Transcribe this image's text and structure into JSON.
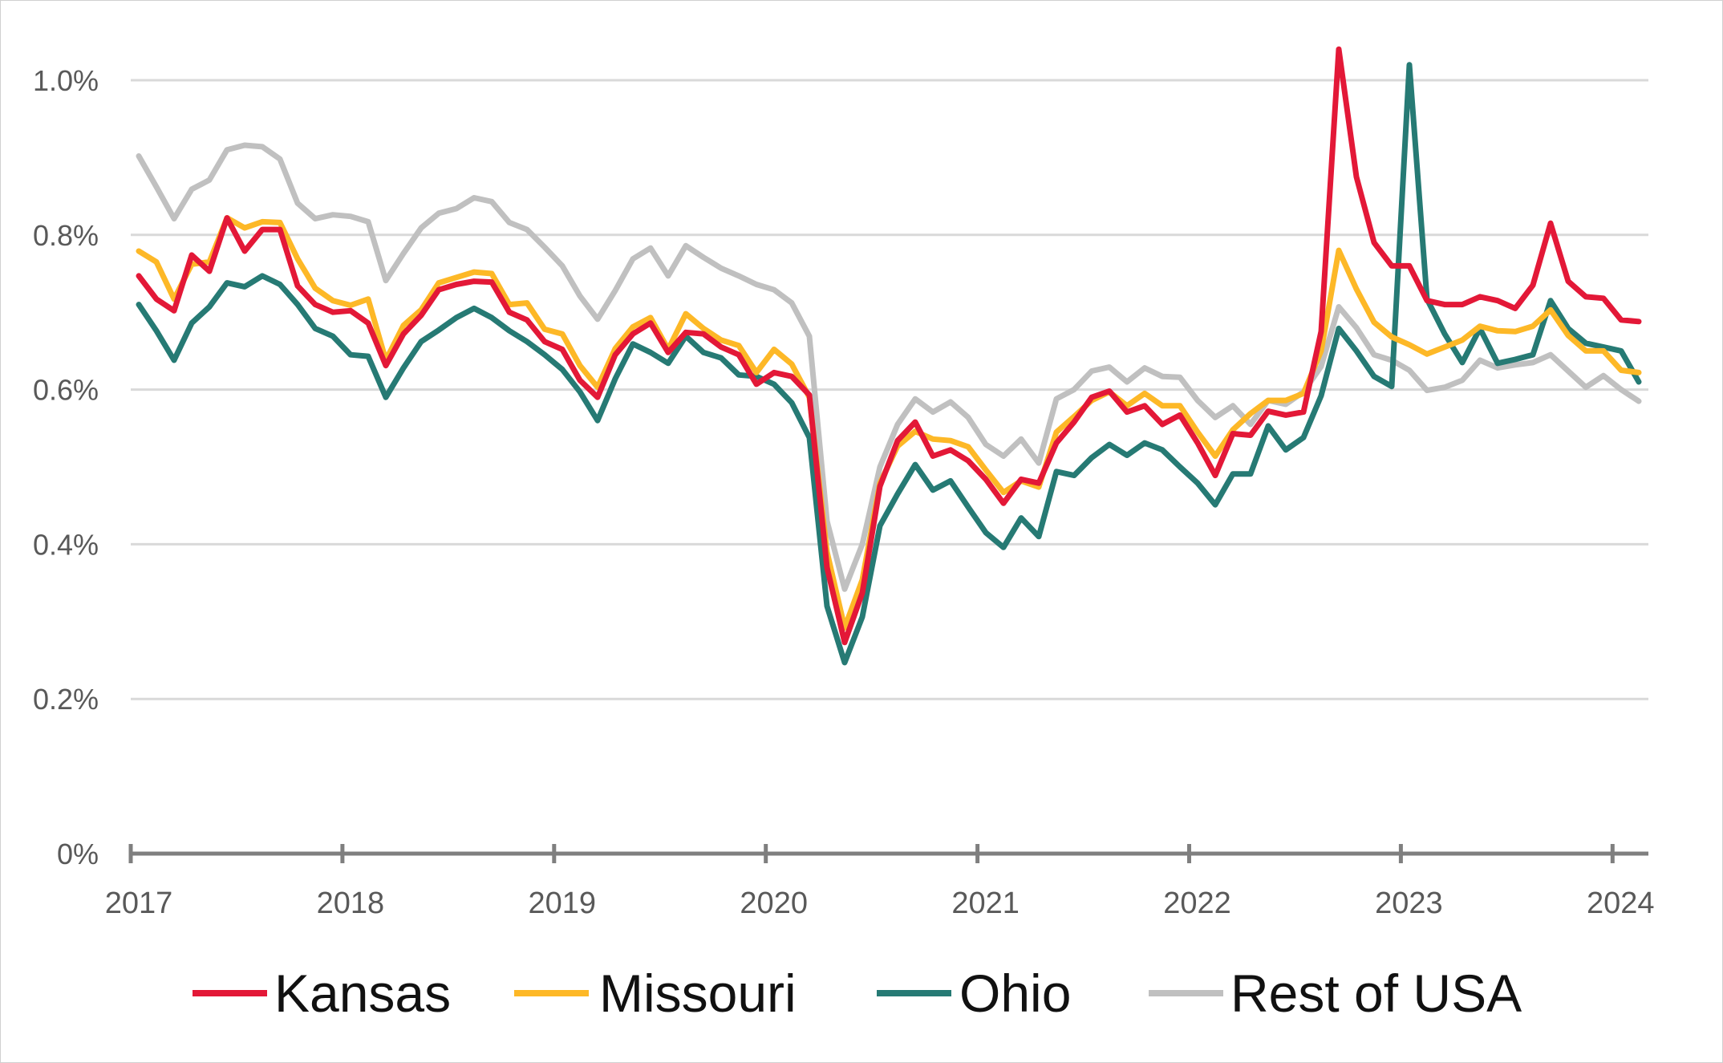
{
  "chart_data": {
    "type": "line",
    "title": "",
    "xlabel": "",
    "ylabel": "",
    "x_start": "2017-01",
    "x_frequency": "monthly",
    "x_tick_labels": [
      "2017",
      "2018",
      "2019",
      "2020",
      "2021",
      "2022",
      "2023",
      "2024"
    ],
    "y_tick_labels": [
      "0%",
      "0.2%",
      "0.4%",
      "0.6%",
      "0.8%",
      "1.0%"
    ],
    "y_ticks": [
      0,
      0.2,
      0.4,
      0.6,
      0.8,
      1.0
    ],
    "ylim": [
      0,
      1.0
    ],
    "grid": true,
    "legend_position": "bottom",
    "series": [
      {
        "name": "Kansas",
        "color": "#e31837",
        "values": [
          0.747,
          0.717,
          0.702,
          0.774,
          0.753,
          0.822,
          0.779,
          0.807,
          0.807,
          0.734,
          0.71,
          0.7,
          0.702,
          0.686,
          0.631,
          0.672,
          0.696,
          0.729,
          0.736,
          0.74,
          0.739,
          0.7,
          0.69,
          0.662,
          0.652,
          0.612,
          0.59,
          0.645,
          0.672,
          0.686,
          0.648,
          0.674,
          0.672,
          0.655,
          0.645,
          0.607,
          0.622,
          0.617,
          0.593,
          0.37,
          0.273,
          0.337,
          0.475,
          0.534,
          0.558,
          0.514,
          0.522,
          0.508,
          0.484,
          0.453,
          0.484,
          0.479,
          0.531,
          0.558,
          0.59,
          0.598,
          0.571,
          0.579,
          0.555,
          0.567,
          0.531,
          0.489,
          0.543,
          0.541,
          0.572,
          0.567,
          0.571,
          0.675,
          1.04,
          0.875,
          0.79,
          0.76,
          0.76,
          0.715,
          0.71,
          0.71,
          0.72,
          0.715,
          0.705,
          0.735,
          0.815,
          0.74,
          0.72,
          0.718,
          0.69,
          0.688
        ]
      },
      {
        "name": "Missouri",
        "color": "#fdb827",
        "values": [
          0.779,
          0.765,
          0.717,
          0.762,
          0.765,
          0.822,
          0.809,
          0.817,
          0.816,
          0.769,
          0.731,
          0.715,
          0.709,
          0.717,
          0.638,
          0.683,
          0.703,
          0.738,
          0.745,
          0.752,
          0.75,
          0.71,
          0.712,
          0.678,
          0.672,
          0.631,
          0.603,
          0.653,
          0.681,
          0.693,
          0.652,
          0.698,
          0.679,
          0.664,
          0.657,
          0.622,
          0.652,
          0.633,
          0.59,
          0.39,
          0.292,
          0.354,
          0.479,
          0.527,
          0.546,
          0.536,
          0.534,
          0.526,
          0.496,
          0.467,
          0.482,
          0.474,
          0.545,
          0.565,
          0.586,
          0.597,
          0.579,
          0.595,
          0.579,
          0.579,
          0.545,
          0.514,
          0.548,
          0.569,
          0.586,
          0.586,
          0.595,
          0.65,
          0.78,
          0.73,
          0.687,
          0.668,
          0.658,
          0.646,
          0.655,
          0.664,
          0.682,
          0.676,
          0.675,
          0.682,
          0.703,
          0.67,
          0.65,
          0.65,
          0.625,
          0.622
        ]
      },
      {
        "name": "Ohio",
        "color": "#267a74",
        "values": [
          0.71,
          0.676,
          0.638,
          0.686,
          0.707,
          0.738,
          0.733,
          0.747,
          0.736,
          0.71,
          0.679,
          0.669,
          0.645,
          0.643,
          0.59,
          0.628,
          0.662,
          0.677,
          0.693,
          0.705,
          0.693,
          0.676,
          0.662,
          0.645,
          0.626,
          0.597,
          0.56,
          0.614,
          0.659,
          0.648,
          0.634,
          0.669,
          0.648,
          0.641,
          0.619,
          0.617,
          0.607,
          0.583,
          0.538,
          0.32,
          0.247,
          0.306,
          0.424,
          0.465,
          0.503,
          0.47,
          0.482,
          0.448,
          0.415,
          0.396,
          0.434,
          0.41,
          0.494,
          0.489,
          0.512,
          0.529,
          0.515,
          0.531,
          0.522,
          0.5,
          0.479,
          0.451,
          0.491,
          0.491,
          0.553,
          0.522,
          0.538,
          0.592,
          0.679,
          0.65,
          0.617,
          0.604,
          1.02,
          0.717,
          0.672,
          0.635,
          0.679,
          0.634,
          0.639,
          0.645,
          0.715,
          0.679,
          0.66,
          0.655,
          0.65,
          0.61
        ]
      },
      {
        "name": "Rest of USA",
        "color": "#c0c0c0",
        "values": [
          0.902,
          0.862,
          0.821,
          0.859,
          0.871,
          0.91,
          0.916,
          0.914,
          0.898,
          0.841,
          0.821,
          0.826,
          0.824,
          0.817,
          0.741,
          0.776,
          0.809,
          0.828,
          0.834,
          0.848,
          0.843,
          0.816,
          0.807,
          0.784,
          0.76,
          0.721,
          0.691,
          0.728,
          0.769,
          0.783,
          0.747,
          0.786,
          0.771,
          0.757,
          0.747,
          0.736,
          0.729,
          0.712,
          0.669,
          0.43,
          0.342,
          0.4,
          0.5,
          0.555,
          0.588,
          0.571,
          0.584,
          0.564,
          0.529,
          0.514,
          0.536,
          0.505,
          0.588,
          0.6,
          0.624,
          0.629,
          0.61,
          0.628,
          0.617,
          0.616,
          0.586,
          0.564,
          0.579,
          0.555,
          0.586,
          0.581,
          0.597,
          0.63,
          0.707,
          0.68,
          0.645,
          0.638,
          0.625,
          0.599,
          0.603,
          0.612,
          0.638,
          0.628,
          0.632,
          0.635,
          0.645,
          0.624,
          0.603,
          0.618,
          0.6,
          0.585
        ]
      }
    ]
  }
}
